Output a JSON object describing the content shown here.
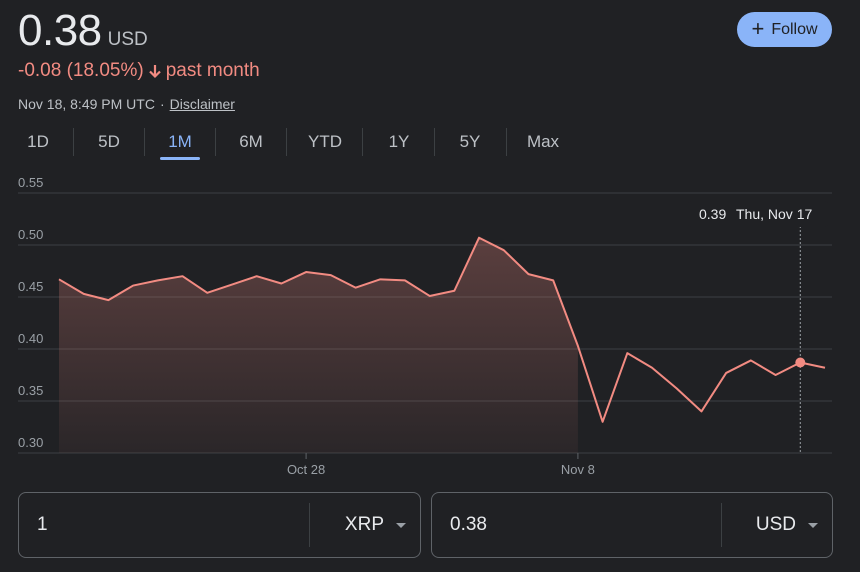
{
  "quote": {
    "price": "0.38",
    "currency": "USD",
    "change": "-0.08 (18.05%)",
    "change_period": "past month",
    "timestamp": "Nov 18, 8:49 PM UTC",
    "separator": "·",
    "disclaimer": "Disclaimer"
  },
  "follow_button": {
    "label": "Follow"
  },
  "ranges": [
    "1D",
    "5D",
    "1M",
    "6M",
    "YTD",
    "1Y",
    "5Y",
    "Max"
  ],
  "active_range": "1M",
  "tooltip": {
    "value": "0.39",
    "date": "Thu, Nov 17"
  },
  "converter": {
    "from_amount": "1",
    "from_currency": "XRP",
    "to_amount": "0.38",
    "to_currency": "USD"
  },
  "colors": {
    "line": "#f28b82",
    "accent": "#8ab4f8",
    "background": "#202124",
    "grid": "#3c4043"
  },
  "chart_data": {
    "type": "area",
    "ylim": [
      0.3,
      0.55
    ],
    "yticks": [
      "0.55",
      "0.50",
      "0.45",
      "0.40",
      "0.35",
      "0.30"
    ],
    "xticks": [
      {
        "label": "Oct 28",
        "index": 10
      },
      {
        "label": "Nov 8",
        "index": 21
      }
    ],
    "highlight_index": 30,
    "series": [
      {
        "values": [
          0.467,
          0.453,
          0.447,
          0.461,
          0.466,
          0.47,
          0.454,
          0.462,
          0.47,
          0.463,
          0.474,
          0.471,
          0.459,
          0.467,
          0.466,
          0.451,
          0.456,
          0.507,
          0.495,
          0.472,
          0.466,
          0.403,
          0.33,
          0.396,
          0.382,
          0.362,
          0.34,
          0.377,
          0.389,
          0.375,
          0.387,
          0.382
        ]
      }
    ]
  }
}
